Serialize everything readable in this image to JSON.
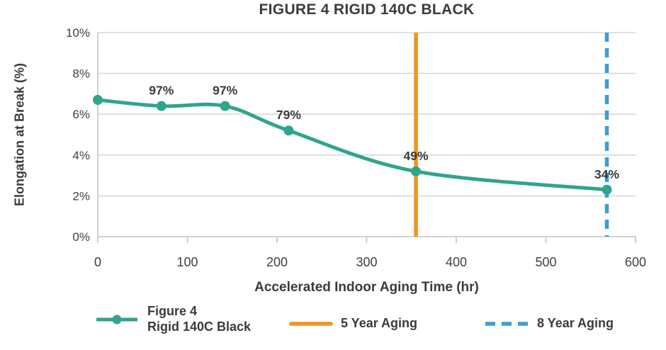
{
  "title": "FIGURE 4 RIGID 140C BLACK",
  "chart_data": {
    "type": "line",
    "title": "FIGURE 4 RIGID 140C BLACK",
    "xlabel": "Accelerated Indoor Aging Time (hr)",
    "ylabel": "Elongation at Break (%)",
    "xlim": [
      0,
      600
    ],
    "ylim": [
      0,
      10
    ],
    "x_ticks": [
      0,
      100,
      200,
      300,
      400,
      500,
      600
    ],
    "y_ticks": [
      0,
      2,
      4,
      6,
      8,
      10
    ],
    "y_tick_suffix": "%",
    "grid": "horizontal",
    "legend_position": "bottom",
    "series": [
      {
        "name": "Figure 4 Rigid 140C Black",
        "x": [
          0,
          71,
          142,
          213,
          355,
          568
        ],
        "y": [
          6.7,
          6.4,
          6.4,
          5.2,
          3.2,
          2.3
        ],
        "point_labels": [
          "",
          "97%",
          "97%",
          "79%",
          "49%",
          "34%"
        ],
        "color": "#2EA58C",
        "marker": "circle",
        "smooth": true
      }
    ],
    "vlines": [
      {
        "name": "5 Year Aging",
        "x": 355,
        "style": "solid",
        "color": "#F0941F"
      },
      {
        "name": "8 Year Aging",
        "x": 568,
        "style": "dashed",
        "color": "#3E9DD3"
      }
    ]
  },
  "legend": {
    "series": {
      "line1": "Figure 4",
      "line2": "Rigid 140C Black"
    },
    "five_year": "5 Year Aging",
    "eight_year": "8 Year Aging"
  },
  "colors": {
    "series": "#2EA58C",
    "five_year": "#F0941F",
    "eight_year": "#3E9DD3",
    "grid": "#D8D8D8",
    "axis": "#C4C4C4",
    "text_dark": "#3B3B3B",
    "text_tick": "#404040"
  }
}
